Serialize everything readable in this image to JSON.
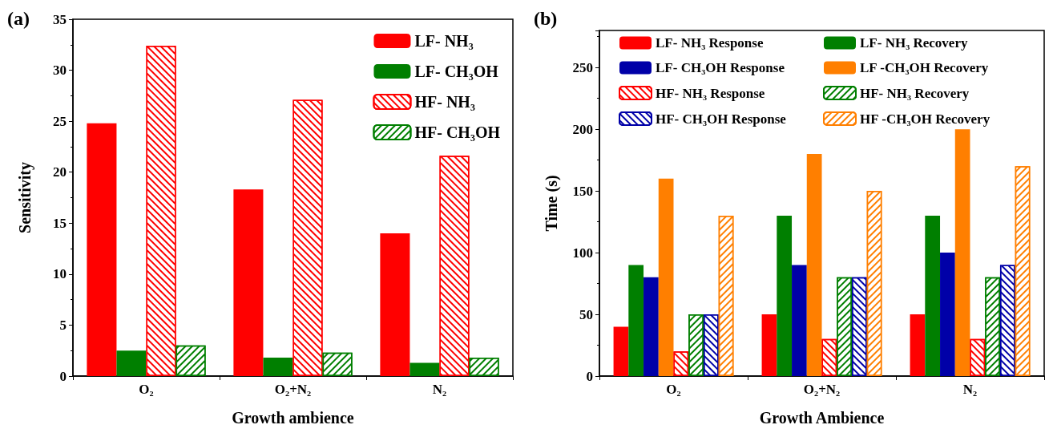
{
  "chart_data": [
    {
      "type": "bar",
      "title": "(a)",
      "xlabel": "Growth ambience",
      "ylabel": "Sensitivity",
      "categories": [
        "O₂",
        "O₂+N₂",
        "N₂"
      ],
      "ylim": [
        0,
        35
      ],
      "yticks": [
        0,
        5,
        10,
        15,
        20,
        25,
        30,
        35
      ],
      "grid": false,
      "legend": "top right",
      "series": [
        {
          "name": "LF- NH₃",
          "color": "#ff0000",
          "values": [
            24.8,
            18.3,
            14.0
          ]
        },
        {
          "name": "LF- CH₃OH",
          "color": "#007f00",
          "values": [
            2.5,
            1.8,
            1.3
          ]
        },
        {
          "name": "HF- NH₃",
          "color": "#ff0000",
          "values": [
            32.4,
            27.1,
            21.6
          ]
        },
        {
          "name": "HF- CH₃OH",
          "color": "#007f00",
          "values": [
            3.0,
            2.3,
            1.8
          ]
        }
      ]
    },
    {
      "type": "bar",
      "title": "(b)",
      "xlabel": "Growth Ambience",
      "ylabel": "Time (s)",
      "categories": [
        "O₂",
        "O₂+N₂",
        "N₂"
      ],
      "ylim": [
        0,
        280
      ],
      "yticks": [
        0,
        50,
        100,
        150,
        200,
        250
      ],
      "grid": false,
      "legend": "top",
      "series": [
        {
          "name": "LF- NH₃ Response",
          "color": "#ff0000",
          "values": [
            40,
            50,
            50
          ]
        },
        {
          "name": "LF- NH₃ Recovery",
          "color": "#007f00",
          "values": [
            90,
            130,
            130
          ]
        },
        {
          "name": "LF- CH₃OH Response",
          "color": "#0000a8",
          "values": [
            80,
            90,
            100
          ]
        },
        {
          "name": "LF -CH₃OH Recovery",
          "color": "#ff7f00",
          "values": [
            160,
            180,
            200
          ]
        },
        {
          "name": "HF- NH₃ Response",
          "color": "#ff0000",
          "values": [
            20,
            30,
            30
          ]
        },
        {
          "name": "HF- NH₃ Recovery",
          "color": "#007f00",
          "values": [
            50,
            80,
            80
          ]
        },
        {
          "name": "HF- CH₃OH Response",
          "color": "#0000a8",
          "values": [
            50,
            80,
            90
          ]
        },
        {
          "name": "HF -CH₃OH Recovery",
          "color": "#ff7f00",
          "values": [
            130,
            150,
            170
          ]
        }
      ]
    }
  ]
}
